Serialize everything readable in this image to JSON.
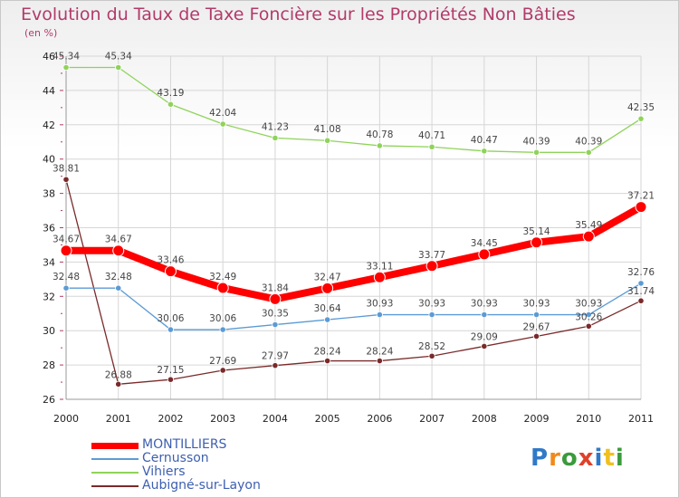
{
  "title": "Evolution du Taux de Taxe Foncière sur les Propriétés Non Bâties",
  "subtitle": "(en %)",
  "logo": {
    "text": "Proxiti",
    "colors": [
      "#2f79c8",
      "#f08a1c",
      "#3a9b3a",
      "#e0402a",
      "#2f79c8",
      "#f0c020",
      "#3a9b3a"
    ]
  },
  "chart_data": {
    "type": "line",
    "x": [
      "2000",
      "2001",
      "2002",
      "2003",
      "2004",
      "2005",
      "2006",
      "2007",
      "2008",
      "2009",
      "2010",
      "2011"
    ],
    "ylim": [
      26,
      46
    ],
    "yticks": [
      26,
      28,
      30,
      32,
      34,
      36,
      38,
      40,
      42,
      44,
      46
    ],
    "grid": true,
    "legend": "bottom-left",
    "series": [
      {
        "name": "MONTILLIERS",
        "color": "#ff0000",
        "values": [
          34.67,
          34.67,
          33.46,
          32.49,
          31.84,
          32.47,
          33.11,
          33.77,
          34.45,
          35.14,
          35.49,
          37.21
        ],
        "labels": [
          "34.67",
          "34.67",
          "33.46",
          "32.49",
          "31.84",
          "32.47",
          "33.11",
          "33.77",
          "34.45",
          "35.14",
          "35.49",
          "37.21"
        ]
      },
      {
        "name": "Cernusson",
        "color": "#5b9bd5",
        "values": [
          32.48,
          32.48,
          30.06,
          30.06,
          30.35,
          30.64,
          30.93,
          30.93,
          30.93,
          30.93,
          30.93,
          32.76
        ],
        "labels": [
          "32.48",
          "32.48",
          "30.06",
          "30.06",
          "30.35",
          "30.64",
          "30.93",
          "30.93",
          "30.93",
          "30.93",
          "30.93",
          "32.76"
        ]
      },
      {
        "name": "Vihiers",
        "color": "#8fd35a",
        "values": [
          45.34,
          45.34,
          43.19,
          42.04,
          41.23,
          41.08,
          40.78,
          40.71,
          40.47,
          40.39,
          40.39,
          42.35
        ],
        "labels": [
          "45.34",
          "45.34",
          "43.19",
          "42.04",
          "41.23",
          "41.08",
          "40.78",
          "40.71",
          "40.47",
          "40.39",
          "40.39",
          "42.35"
        ]
      },
      {
        "name": "Aubigné-sur-Layon",
        "color": "#7a2a2a",
        "values": [
          38.81,
          26.88,
          27.15,
          27.69,
          27.97,
          28.24,
          28.24,
          28.52,
          29.09,
          29.67,
          30.26,
          31.74
        ],
        "labels": [
          "38.81",
          "26.88",
          "27.15",
          "27.69",
          "27.97",
          "28.24",
          "28.24",
          "28.52",
          "29.09",
          "29.67",
          "30.26",
          "31.74"
        ]
      }
    ]
  }
}
